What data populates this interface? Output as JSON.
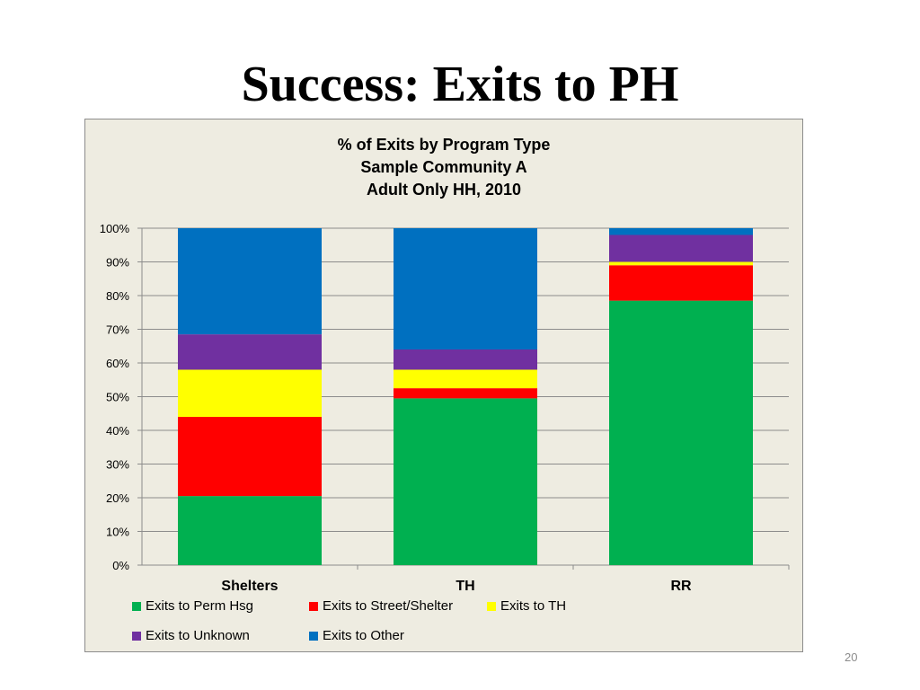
{
  "slide": {
    "title": "Success: Exits to PH",
    "page_number": "20"
  },
  "chart_data": {
    "type": "bar",
    "stacked": true,
    "title": [
      "% of Exits by Program Type",
      "Sample Community A",
      "Adult Only HH, 2010"
    ],
    "categories": [
      "Shelters",
      "TH",
      "RR"
    ],
    "series": [
      {
        "name": "Exits to Perm Hsg",
        "color": "#00b050",
        "values": [
          20.5,
          49.5,
          78.5
        ]
      },
      {
        "name": "Exits to Street/Shelter",
        "color": "#ff0000",
        "values": [
          23.5,
          3,
          10.5
        ]
      },
      {
        "name": "Exits to TH",
        "color": "#ffff00",
        "values": [
          14,
          5.5,
          1
        ]
      },
      {
        "name": "Exits to Unknown",
        "color": "#7030a0",
        "values": [
          10.5,
          6,
          8
        ]
      },
      {
        "name": "Exits to Other",
        "color": "#0070c0",
        "values": [
          31.5,
          36,
          2
        ]
      }
    ],
    "yticks": [
      "0%",
      "10%",
      "20%",
      "30%",
      "40%",
      "50%",
      "60%",
      "70%",
      "80%",
      "90%",
      "100%"
    ],
    "ylim": [
      0,
      100
    ],
    "grid": true,
    "legend": "bottom",
    "background": "#eeece1"
  }
}
